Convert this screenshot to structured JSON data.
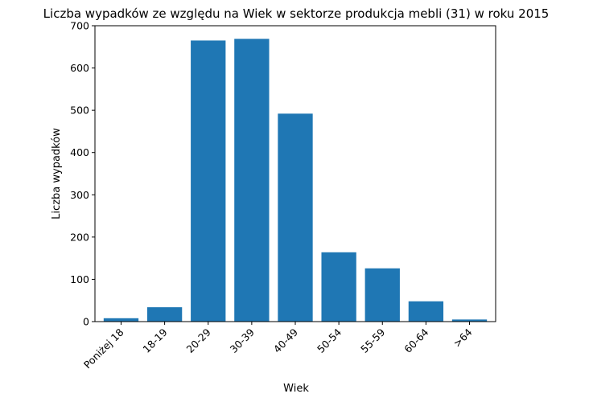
{
  "chart_data": {
    "type": "bar",
    "title": "Liczba wypadków ze względu na Wiek w sektorze produkcja mebli  (31)   w roku 2015",
    "xlabel": "Wiek",
    "ylabel": "Liczba wypadków",
    "categories": [
      "Poniżej 18",
      "18-19",
      "20-29",
      "30-39",
      "40-49",
      "50-54",
      "55-59",
      "60-64",
      ">64"
    ],
    "values": [
      8,
      34,
      665,
      669,
      492,
      164,
      126,
      48,
      5
    ],
    "ylim": [
      0,
      700
    ],
    "yticks": [
      "0",
      "100",
      "200",
      "300",
      "400",
      "500",
      "600",
      "700"
    ],
    "bar_color": "#1f77b4",
    "grid": false,
    "legend": "none"
  }
}
